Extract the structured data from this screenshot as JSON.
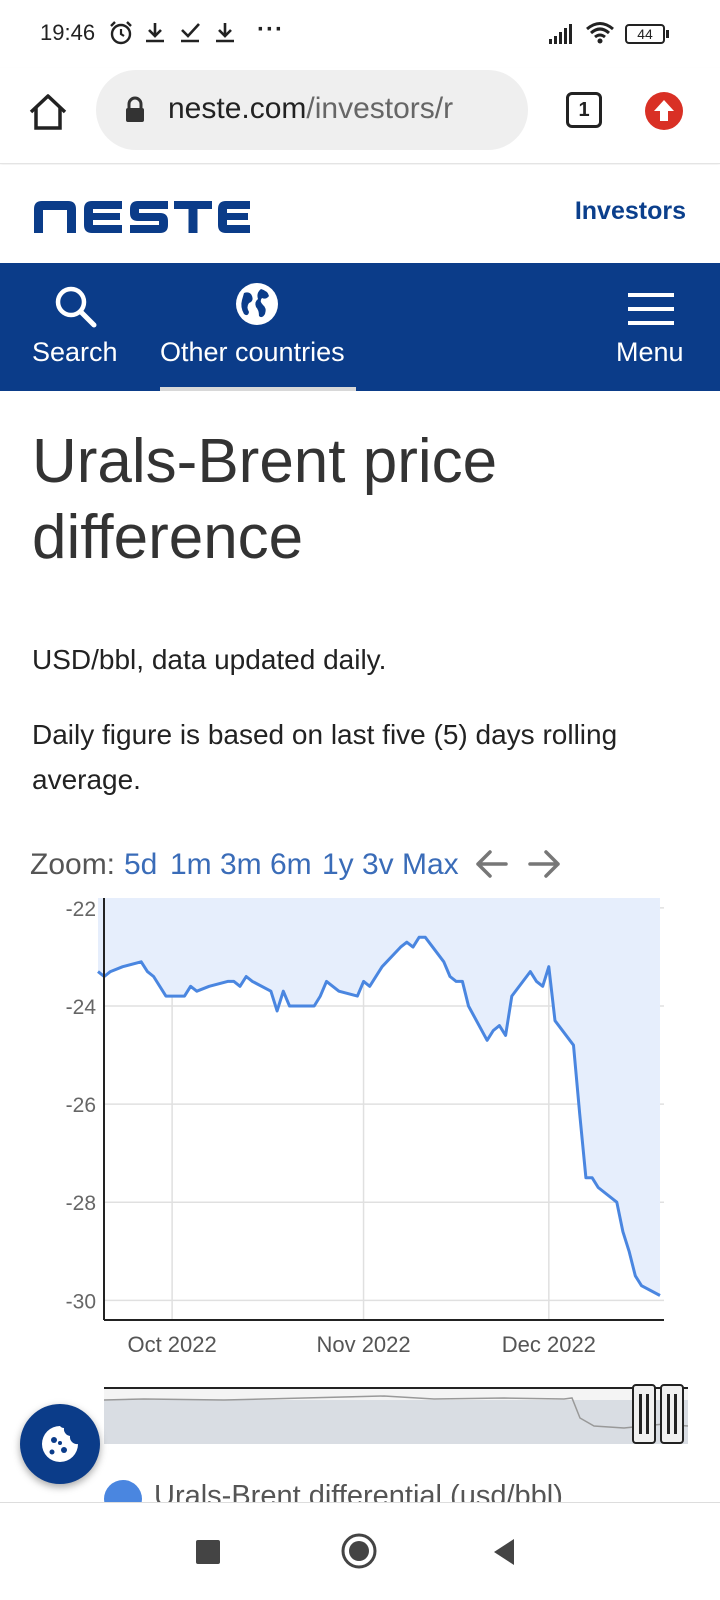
{
  "status_bar": {
    "time": "19:46",
    "more": "···",
    "battery": "44"
  },
  "browser": {
    "url_domain": "neste.com",
    "url_path": "/investors/r",
    "tab_count": "1"
  },
  "site": {
    "logo_text": "NESTE",
    "investors": "Investors"
  },
  "nav": {
    "search": "Search",
    "other_countries": "Other countries",
    "menu": "Menu"
  },
  "page": {
    "title": "Urals-Brent price difference",
    "unit_note": "USD/bbl, data updated daily.",
    "rolling_note": "Daily figure is based on last five (5) days rolling average."
  },
  "zoom": {
    "label": "Zoom:",
    "options": [
      "5d",
      "1m",
      "3m",
      "6m",
      "1y",
      "3v",
      "Max"
    ]
  },
  "legend": {
    "series_name": "Urals-Brent differential (usd/bbl)"
  },
  "colors": {
    "brand_blue": "#0b3c89",
    "series_line": "#4a86e0",
    "series_fill": "#e6eefc",
    "update_red": "#d93025"
  },
  "chart_data": {
    "type": "area",
    "title": "",
    "xlabel": "",
    "ylabel": "",
    "ylim": [
      -30.4,
      -21.8
    ],
    "y_ticks": [
      "-22",
      "-24",
      "-26",
      "-28",
      "-30"
    ],
    "x_tick_labels": [
      "Oct 2022",
      "Nov 2022",
      "Dec 2022"
    ],
    "grid": true,
    "legend_position": "bottom",
    "series": [
      {
        "name": "Urals-Brent differential (usd/bbl)",
        "x": [
          "2022-09-19",
          "2022-09-20",
          "2022-09-21",
          "2022-09-23",
          "2022-09-26",
          "2022-09-27",
          "2022-09-28",
          "2022-09-30",
          "2022-10-03",
          "2022-10-04",
          "2022-10-05",
          "2022-10-07",
          "2022-10-10",
          "2022-10-11",
          "2022-10-12",
          "2022-10-13",
          "2022-10-14",
          "2022-10-17",
          "2022-10-18",
          "2022-10-19",
          "2022-10-20",
          "2022-10-21",
          "2022-10-24",
          "2022-10-25",
          "2022-10-26",
          "2022-10-28",
          "2022-10-31",
          "2022-11-01",
          "2022-11-02",
          "2022-11-04",
          "2022-11-07",
          "2022-11-08",
          "2022-11-09",
          "2022-11-10",
          "2022-11-11",
          "2022-11-14",
          "2022-11-15",
          "2022-11-16",
          "2022-11-17",
          "2022-11-18",
          "2022-11-21",
          "2022-11-22",
          "2022-11-23",
          "2022-11-24",
          "2022-11-25",
          "2022-11-28",
          "2022-11-29",
          "2022-11-30",
          "2022-12-01",
          "2022-12-02",
          "2022-12-05",
          "2022-12-06",
          "2022-12-07",
          "2022-12-08",
          "2022-12-09",
          "2022-12-12",
          "2022-12-13",
          "2022-12-14",
          "2022-12-15",
          "2022-12-16",
          "2022-12-19"
        ],
        "values": [
          -23.3,
          -23.4,
          -23.3,
          -23.2,
          -23.1,
          -23.3,
          -23.4,
          -23.8,
          -23.8,
          -23.6,
          -23.7,
          -23.6,
          -23.5,
          -23.5,
          -23.6,
          -23.4,
          -23.5,
          -23.7,
          -24.1,
          -23.7,
          -24.0,
          -24.0,
          -24.0,
          -23.8,
          -23.5,
          -23.7,
          -23.8,
          -23.5,
          -23.6,
          -23.2,
          -22.8,
          -22.7,
          -22.8,
          -22.6,
          -22.6,
          -23.1,
          -23.4,
          -23.5,
          -23.5,
          -24.0,
          -24.7,
          -24.5,
          -24.4,
          -24.6,
          -23.8,
          -23.3,
          -23.5,
          -23.6,
          -23.2,
          -24.3,
          -24.8,
          -26.2,
          -27.5,
          -27.5,
          -27.7,
          -28.0,
          -28.6,
          -29.0,
          -29.5,
          -29.7,
          -29.9
        ]
      }
    ]
  }
}
